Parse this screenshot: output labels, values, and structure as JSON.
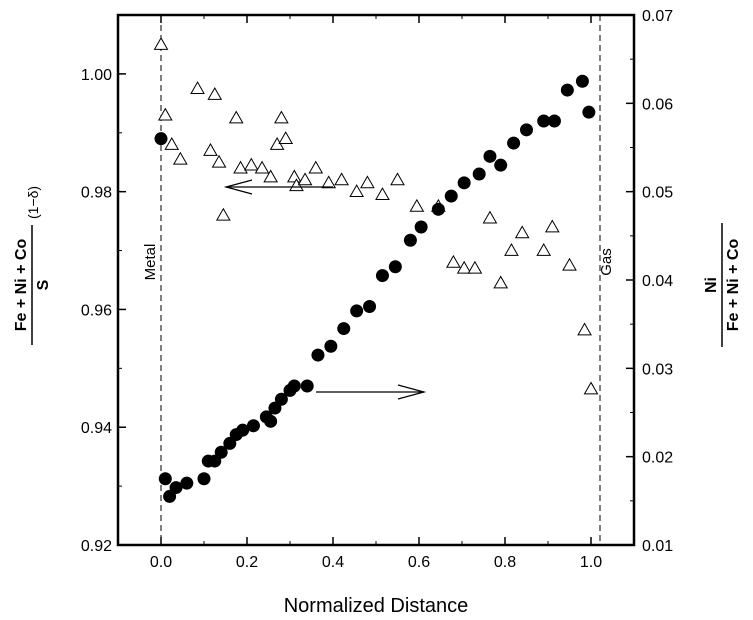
{
  "chart_data": {
    "type": "scatter",
    "xlabel": "Normalized Distance",
    "ylabel_left": {
      "numerator": "Fe + Ni + Co",
      "denominator": "S",
      "exponent": "(1−δ)"
    },
    "ylabel_right": {
      "numerator": "Ni",
      "denominator": "Fe + Ni + Co"
    },
    "xlim": [
      -0.1,
      1.1
    ],
    "ylim_left": [
      0.92,
      1.01
    ],
    "ylim_right": [
      0.01,
      0.07
    ],
    "x_ticks": [
      "0.0",
      "0.2",
      "0.4",
      "0.6",
      "0.8",
      "1.0"
    ],
    "y_ticks_left": [
      "0.92",
      "0.94",
      "0.96",
      "0.98",
      "1.00"
    ],
    "y_ticks_right": [
      "0.01",
      "0.02",
      "0.03",
      "0.04",
      "0.05",
      "0.06",
      "0.07"
    ],
    "grid": false,
    "annotations": {
      "metal": "Metal",
      "gas": "Gas"
    },
    "series": [
      {
        "marker": "open-triangle",
        "axis": "left",
        "x": [
          0.0,
          0.01,
          0.025,
          0.045,
          0.085,
          0.115,
          0.125,
          0.135,
          0.145,
          0.175,
          0.185,
          0.21,
          0.235,
          0.255,
          0.27,
          0.28,
          0.29,
          0.31,
          0.315,
          0.335,
          0.36,
          0.39,
          0.42,
          0.455,
          0.48,
          0.515,
          0.55,
          0.595,
          0.645,
          0.68,
          0.705,
          0.73,
          0.765,
          0.79,
          0.815,
          0.84,
          0.89,
          0.91,
          0.95,
          0.985,
          1.0
        ],
        "y": [
          1.005,
          0.993,
          0.988,
          0.9855,
          0.9975,
          0.987,
          0.9965,
          0.985,
          0.976,
          0.9925,
          0.984,
          0.9845,
          0.984,
          0.9825,
          0.988,
          0.9925,
          0.989,
          0.9825,
          0.981,
          0.982,
          0.984,
          0.9815,
          0.982,
          0.98,
          0.9815,
          0.9795,
          0.982,
          0.9775,
          0.9775,
          0.968,
          0.967,
          0.967,
          0.9755,
          0.9645,
          0.97,
          0.973,
          0.97,
          0.974,
          0.9675,
          0.9565,
          0.9465
        ]
      },
      {
        "marker": "filled-circle",
        "axis": "right",
        "x": [
          0.0,
          0.01,
          0.02,
          0.035,
          0.06,
          0.1,
          0.11,
          0.125,
          0.14,
          0.16,
          0.175,
          0.19,
          0.215,
          0.245,
          0.255,
          0.265,
          0.28,
          0.3,
          0.31,
          0.34,
          0.365,
          0.395,
          0.425,
          0.455,
          0.485,
          0.515,
          0.545,
          0.58,
          0.605,
          0.645,
          0.675,
          0.705,
          0.74,
          0.765,
          0.79,
          0.82,
          0.85,
          0.89,
          0.915,
          0.945,
          0.98,
          0.995
        ],
        "y": [
          0.056,
          0.0175,
          0.0155,
          0.0165,
          0.017,
          0.0175,
          0.0195,
          0.0195,
          0.0205,
          0.0215,
          0.0225,
          0.023,
          0.0235,
          0.0245,
          0.024,
          0.0255,
          0.0265,
          0.0275,
          0.028,
          0.028,
          0.0315,
          0.0325,
          0.0345,
          0.0365,
          0.037,
          0.0405,
          0.0415,
          0.0445,
          0.046,
          0.048,
          0.0495,
          0.051,
          0.052,
          0.054,
          0.053,
          0.0555,
          0.057,
          0.058,
          0.058,
          0.0615,
          0.0625,
          0.059
        ]
      }
    ]
  }
}
